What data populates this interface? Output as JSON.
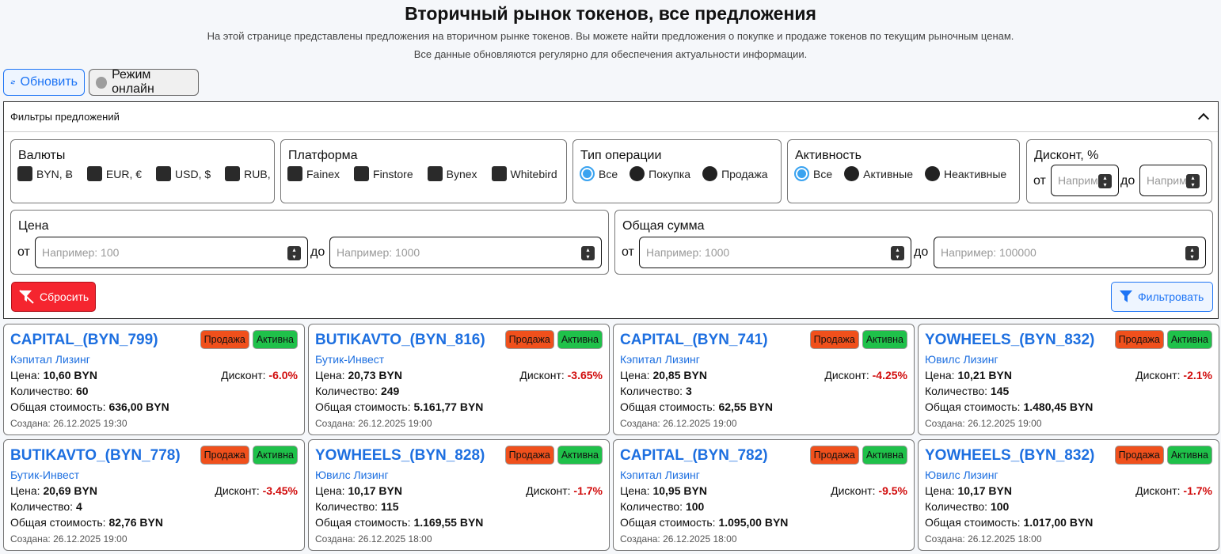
{
  "page": {
    "title": "Вторичный рынок токенов, все предложения",
    "subtitle1": "На этой странице представлены предложения на вторичном рынке токенов. Вы можете найти предложения о покупке и продаже токенов по текущим рыночным ценам.",
    "subtitle2": "Все данные обновляются регулярно для обеспечения актуальности информации."
  },
  "toolbar": {
    "refresh_label": "Обновить",
    "online_label": "Режим онлайн"
  },
  "filters": {
    "title": "Фильтры предложений",
    "currencies": {
      "label": "Валюты",
      "items": [
        "BYN, Ƀ",
        "EUR, €",
        "USD, $",
        "RUB,"
      ]
    },
    "platform": {
      "label": "Платформа",
      "items": [
        "Fainex",
        "Finstore",
        "Bynex",
        "Whitebird"
      ]
    },
    "operation": {
      "label": "Тип операции",
      "items": [
        "Все",
        "Покупка",
        "Продажа"
      ],
      "selected": "Все"
    },
    "activity": {
      "label": "Активность",
      "items": [
        "Все",
        "Активные",
        "Неактивные"
      ],
      "selected": "Все"
    },
    "discount": {
      "label": "Дисконт, %",
      "from": "от",
      "to": "до",
      "placeholder_from": "Например",
      "placeholder_to": "Например"
    },
    "price": {
      "label": "Цена",
      "from": "от",
      "to": "до",
      "placeholder_from": "Например: 100",
      "placeholder_to": "Например: 1000"
    },
    "total": {
      "label": "Общая сумма",
      "from": "от",
      "to": "до",
      "placeholder_from": "Например: 1000",
      "placeholder_to": "Например: 100000"
    },
    "reset_label": "Сбросить",
    "filter_label": "Фильтровать"
  },
  "labels": {
    "price": "Цена: ",
    "qty": "Количество: ",
    "total": "Общая стоимость: ",
    "created": "Создана: ",
    "discount": "Дисконт: "
  },
  "cards": [
    {
      "name": "CAPITAL_(BYN_799)",
      "type": "Продажа",
      "status": "Активна",
      "issuer": "Кэпитал Лизинг",
      "price": "10,60 BYN",
      "discount": "-6.0%",
      "qty": "60",
      "total": "636,00 BYN",
      "created": "26.12.2025 19:30"
    },
    {
      "name": "BUTIKAVTO_(BYN_816)",
      "type": "Продажа",
      "status": "Активна",
      "issuer": "Бутик-Инвест",
      "price": "20,73 BYN",
      "discount": "-3.65%",
      "qty": "249",
      "total": "5.161,77 BYN",
      "created": "26.12.2025 19:00"
    },
    {
      "name": "CAPITAL_(BYN_741)",
      "type": "Продажа",
      "status": "Активна",
      "issuer": "Кэпитал Лизинг",
      "price": "20,85 BYN",
      "discount": "-4.25%",
      "qty": "3",
      "total": "62,55 BYN",
      "created": "26.12.2025 19:00"
    },
    {
      "name": "YOWHEELS_(BYN_832)",
      "type": "Продажа",
      "status": "Активна",
      "issuer": "Ювилс Лизинг",
      "price": "10,21 BYN",
      "discount": "-2.1%",
      "qty": "145",
      "total": "1.480,45 BYN",
      "created": "26.12.2025 19:00"
    },
    {
      "name": "BUTIKAVTO_(BYN_778)",
      "type": "Продажа",
      "status": "Активна",
      "issuer": "Бутик-Инвест",
      "price": "20,69 BYN",
      "discount": "-3.45%",
      "qty": "4",
      "total": "82,76 BYN",
      "created": "26.12.2025 19:00"
    },
    {
      "name": "YOWHEELS_(BYN_828)",
      "type": "Продажа",
      "status": "Активна",
      "issuer": "Ювилс Лизинг",
      "price": "10,17 BYN",
      "discount": "-1.7%",
      "qty": "115",
      "total": "1.169,55 BYN",
      "created": "26.12.2025 18:00"
    },
    {
      "name": "CAPITAL_(BYN_782)",
      "type": "Продажа",
      "status": "Активна",
      "issuer": "Кэпитал Лизинг",
      "price": "10,95 BYN",
      "discount": "-9.5%",
      "qty": "100",
      "total": "1.095,00 BYN",
      "created": "26.12.2025 18:00"
    },
    {
      "name": "YOWHEELS_(BYN_832)",
      "type": "Продажа",
      "status": "Активна",
      "issuer": "Ювилс Лизинг",
      "price": "10,17 BYN",
      "discount": "-1.7%",
      "qty": "100",
      "total": "1.017,00 BYN",
      "created": "26.12.2025 18:00"
    }
  ]
}
